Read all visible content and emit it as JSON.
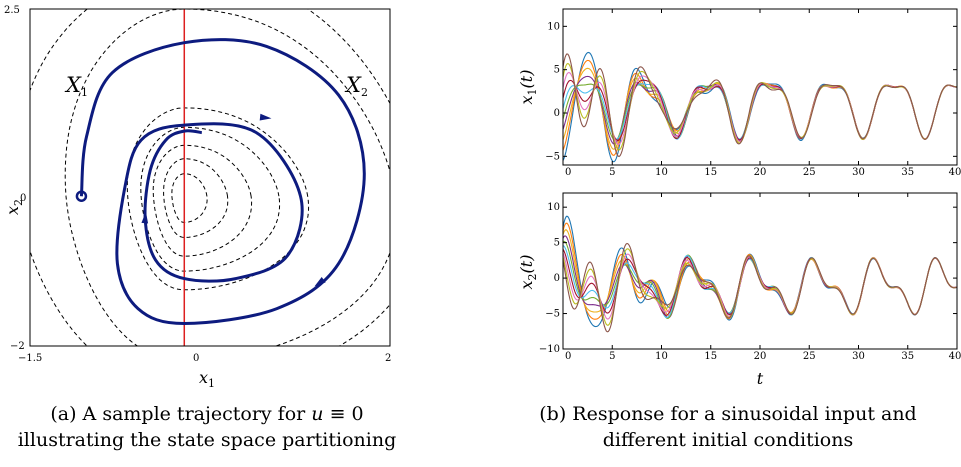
{
  "chart_data": [
    {
      "type": "line",
      "panel": "a",
      "caption_lines": [
        "(a) A sample trajectory for u ≡ 0",
        "illustrating the state space partitioning"
      ],
      "xlabel": "x1",
      "ylabel": "x2",
      "xlim": [
        -1.5,
        2
      ],
      "ylim": [
        -2,
        2.5
      ],
      "x_tick_labels": [
        "−1.5",
        "0",
        "2"
      ],
      "y_tick_labels": [
        "2.5",
        "0",
        "−2"
      ],
      "region_labels": [
        "X1",
        "X2"
      ],
      "partition_line": {
        "x": 0,
        "color": "#dd1f1f"
      },
      "trajectory": {
        "color": "#0d1b7f",
        "start": [
          -1.0,
          0.0
        ],
        "points": [
          [
            -1.0,
            0.0
          ],
          [
            -0.95,
            0.8
          ],
          [
            -0.7,
            1.65
          ],
          [
            0.0,
            2.05
          ],
          [
            0.8,
            2.0
          ],
          [
            1.5,
            1.35
          ],
          [
            1.75,
            0.3
          ],
          [
            1.5,
            -0.9
          ],
          [
            0.9,
            -1.5
          ],
          [
            0.0,
            -1.7
          ],
          [
            -0.45,
            -1.5
          ],
          [
            -0.65,
            -0.9
          ],
          [
            -0.58,
            0.1
          ],
          [
            -0.42,
            0.75
          ],
          [
            0.0,
            0.95
          ],
          [
            0.7,
            0.85
          ],
          [
            1.13,
            0.0
          ],
          [
            1.0,
            -0.8
          ],
          [
            0.5,
            -1.1
          ],
          [
            0.0,
            -1.1
          ],
          [
            -0.28,
            -0.85
          ],
          [
            -0.38,
            -0.3
          ],
          [
            -0.33,
            0.35
          ],
          [
            -0.18,
            0.75
          ],
          [
            0.0,
            0.87
          ],
          [
            0.17,
            0.85
          ]
        ],
        "arrows_at": [
          [
            0.78,
            1.05
          ],
          [
            1.32,
            -1.15
          ],
          [
            -0.38,
            -0.3
          ]
        ]
      },
      "level_sets": [
        {
          "rx_left": 0.12,
          "rx_right": 0.22,
          "ry_top": 0.3,
          "ry_bottom": 0.35
        },
        {
          "rx_left": 0.2,
          "rx_right": 0.42,
          "ry_top": 0.5,
          "ry_bottom": 0.55
        },
        {
          "rx_left": 0.3,
          "rx_right": 0.65,
          "ry_top": 0.68,
          "ry_bottom": 0.8
        },
        {
          "rx_left": 0.42,
          "rx_right": 0.92,
          "ry_top": 0.92,
          "ry_bottom": 1.0
        },
        {
          "rx_left": 0.55,
          "rx_right": 1.2,
          "ry_top": 1.18,
          "ry_bottom": 1.25
        },
        {
          "rx_left": 1.15,
          "rx_right": 2.05,
          "ry_top": 2.5,
          "ry_bottom": 2.2
        },
        {
          "rx_left": 1.62,
          "rx_right": 2.3,
          "ry_top": 3.0,
          "ry_bottom": 2.55
        }
      ]
    },
    {
      "type": "line",
      "panel": "b-top",
      "caption_lines": [
        "(b) Response for a sinusoidal input and",
        "different initial conditions"
      ],
      "ylabel": "x1(t)",
      "xlim": [
        0,
        40
      ],
      "ylim": [
        -6,
        12
      ],
      "x_tick_labels": [
        "0",
        "5",
        "10",
        "15",
        "20",
        "25",
        "30",
        "35",
        "40"
      ],
      "y_tick_labels": [
        "10",
        "5",
        "0",
        "−5"
      ],
      "series": [
        {
          "color": "#1f77b4",
          "ic": -5.5
        },
        {
          "color": "#ff7f0e",
          "ic": -4.3
        },
        {
          "color": "#edb120",
          "ic": -3.1
        },
        {
          "color": "#7e2f8e",
          "ic": -1.9
        },
        {
          "color": "#77ac30",
          "ic": -0.7
        },
        {
          "color": "#4dbeee",
          "ic": 0.5
        },
        {
          "color": "#a2142f",
          "ic": 1.7
        },
        {
          "color": "#e377c2",
          "ic": 2.9
        },
        {
          "color": "#bcbd22",
          "ic": 4.1
        },
        {
          "color": "#8c564b",
          "ic": 5.3
        }
      ]
    },
    {
      "type": "line",
      "panel": "b-bottom",
      "xlabel": "t",
      "ylabel": "x2(t)",
      "xlim": [
        0,
        40
      ],
      "ylim": [
        -10,
        12
      ],
      "x_tick_labels": [
        "0",
        "5",
        "10",
        "15",
        "20",
        "25",
        "30",
        "35",
        "40"
      ],
      "y_tick_labels": [
        "10",
        "5",
        "0",
        "−5",
        "−10"
      ]
    }
  ]
}
